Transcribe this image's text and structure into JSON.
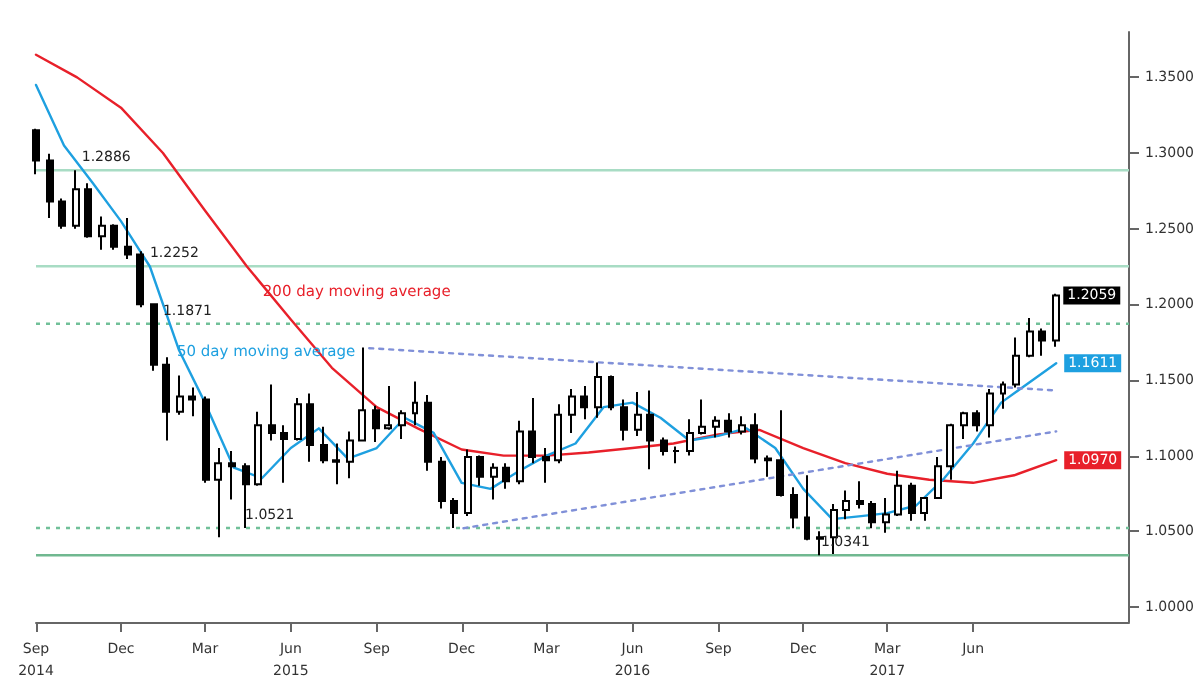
{
  "chart_data": {
    "type": "candlestick",
    "x": [
      "2014-09-01",
      "2014-09-15",
      "2014-09-29",
      "2014-10-13",
      "2014-10-27",
      "2014-11-10",
      "2014-11-24",
      "2014-12-08",
      "2014-12-22",
      "2015-01-05",
      "2015-01-19",
      "2015-02-02",
      "2015-02-16",
      "2015-03-02",
      "2015-03-16",
      "2015-03-30",
      "2015-04-13",
      "2015-04-27",
      "2015-05-11",
      "2015-05-25",
      "2015-06-08",
      "2015-06-22",
      "2015-07-06",
      "2015-07-20",
      "2015-08-03",
      "2015-08-17",
      "2015-08-31",
      "2015-09-14",
      "2015-09-28",
      "2015-10-12",
      "2015-10-26",
      "2015-11-09",
      "2015-11-23",
      "2015-12-07",
      "2015-12-21",
      "2016-01-04",
      "2016-01-18",
      "2016-02-01",
      "2016-02-15",
      "2016-02-29",
      "2016-03-14",
      "2016-03-28",
      "2016-04-11",
      "2016-04-25",
      "2016-05-09",
      "2016-05-23",
      "2016-06-06",
      "2016-06-20",
      "2016-07-04",
      "2016-07-18",
      "2016-08-01",
      "2016-08-15",
      "2016-08-29",
      "2016-09-12",
      "2016-09-26",
      "2016-10-10",
      "2016-10-24",
      "2016-11-07",
      "2016-11-21",
      "2016-12-05",
      "2016-12-19",
      "2017-01-02",
      "2017-01-16",
      "2017-01-30",
      "2017-02-13",
      "2017-02-27",
      "2017-03-13",
      "2017-03-27",
      "2017-04-10",
      "2017-04-24",
      "2017-05-08",
      "2017-05-22",
      "2017-06-05",
      "2017-06-19",
      "2017-07-03",
      "2017-07-17",
      "2017-07-31",
      "2017-08-14",
      "2017-08-28"
    ],
    "ohlc": [
      [
        1.315,
        1.316,
        1.286,
        1.295
      ],
      [
        1.295,
        1.2995,
        1.257,
        1.268
      ],
      [
        1.268,
        1.27,
        1.25,
        1.252
      ],
      [
        1.252,
        1.2886,
        1.25,
        1.276
      ],
      [
        1.276,
        1.28,
        1.244,
        1.245
      ],
      [
        1.245,
        1.258,
        1.236,
        1.252
      ],
      [
        1.252,
        1.253,
        1.236,
        1.238
      ],
      [
        1.238,
        1.257,
        1.23,
        1.233
      ],
      [
        1.233,
        1.235,
        1.198,
        1.2
      ],
      [
        1.2,
        1.2,
        1.156,
        1.16
      ],
      [
        1.16,
        1.165,
        1.11,
        1.129
      ],
      [
        1.129,
        1.153,
        1.127,
        1.139
      ],
      [
        1.139,
        1.145,
        1.126,
        1.137
      ],
      [
        1.137,
        1.139,
        1.082,
        1.084
      ],
      [
        1.084,
        1.105,
        1.046,
        1.095
      ],
      [
        1.095,
        1.103,
        1.071,
        1.093
      ],
      [
        1.093,
        1.095,
        1.0521,
        1.081
      ],
      [
        1.081,
        1.129,
        1.08,
        1.12
      ],
      [
        1.12,
        1.147,
        1.11,
        1.115
      ],
      [
        1.115,
        1.12,
        1.082,
        1.111
      ],
      [
        1.111,
        1.138,
        1.11,
        1.134
      ],
      [
        1.134,
        1.141,
        1.096,
        1.107
      ],
      [
        1.107,
        1.119,
        1.095,
        1.097
      ],
      [
        1.097,
        1.108,
        1.081,
        1.096
      ],
      [
        1.096,
        1.116,
        1.085,
        1.11
      ],
      [
        1.11,
        1.1714,
        1.11,
        1.13
      ],
      [
        1.13,
        1.133,
        1.109,
        1.118
      ],
      [
        1.118,
        1.146,
        1.117,
        1.12
      ],
      [
        1.12,
        1.13,
        1.111,
        1.128
      ],
      [
        1.128,
        1.149,
        1.12,
        1.135
      ],
      [
        1.135,
        1.14,
        1.09,
        1.096
      ],
      [
        1.096,
        1.099,
        1.065,
        1.07
      ],
      [
        1.07,
        1.072,
        1.0521,
        1.062
      ],
      [
        1.062,
        1.104,
        1.06,
        1.099
      ],
      [
        1.099,
        1.1,
        1.08,
        1.086
      ],
      [
        1.086,
        1.095,
        1.071,
        1.092
      ],
      [
        1.092,
        1.095,
        1.078,
        1.083
      ],
      [
        1.083,
        1.123,
        1.081,
        1.116
      ],
      [
        1.116,
        1.138,
        1.095,
        1.099
      ],
      [
        1.099,
        1.105,
        1.082,
        1.097
      ],
      [
        1.097,
        1.134,
        1.095,
        1.127
      ],
      [
        1.127,
        1.144,
        1.115,
        1.139
      ],
      [
        1.139,
        1.146,
        1.124,
        1.132
      ],
      [
        1.132,
        1.1616,
        1.125,
        1.152
      ],
      [
        1.152,
        1.153,
        1.13,
        1.132
      ],
      [
        1.132,
        1.137,
        1.11,
        1.117
      ],
      [
        1.117,
        1.142,
        1.113,
        1.127
      ],
      [
        1.127,
        1.143,
        1.091,
        1.11
      ],
      [
        1.11,
        1.112,
        1.1,
        1.103
      ],
      [
        1.103,
        1.106,
        1.095,
        1.103
      ],
      [
        1.103,
        1.124,
        1.1,
        1.115
      ],
      [
        1.115,
        1.137,
        1.114,
        1.119
      ],
      [
        1.119,
        1.126,
        1.112,
        1.123
      ],
      [
        1.123,
        1.128,
        1.112,
        1.116
      ],
      [
        1.116,
        1.126,
        1.114,
        1.12
      ],
      [
        1.12,
        1.128,
        1.095,
        1.098
      ],
      [
        1.098,
        1.1,
        1.086,
        1.097
      ],
      [
        1.097,
        1.13,
        1.073,
        1.074
      ],
      [
        1.074,
        1.079,
        1.052,
        1.059
      ],
      [
        1.059,
        1.087,
        1.044,
        1.045
      ],
      [
        1.045,
        1.05,
        1.0341,
        1.046
      ],
      [
        1.046,
        1.068,
        1.035,
        1.064
      ],
      [
        1.064,
        1.077,
        1.058,
        1.07
      ],
      [
        1.07,
        1.083,
        1.065,
        1.068
      ],
      [
        1.068,
        1.07,
        1.052,
        1.056
      ],
      [
        1.056,
        1.072,
        1.049,
        1.061
      ],
      [
        1.061,
        1.09,
        1.06,
        1.08
      ],
      [
        1.08,
        1.082,
        1.057,
        1.062
      ],
      [
        1.062,
        1.072,
        1.057,
        1.072
      ],
      [
        1.072,
        1.099,
        1.072,
        1.093
      ],
      [
        1.093,
        1.121,
        1.084,
        1.12
      ],
      [
        1.12,
        1.129,
        1.111,
        1.128
      ],
      [
        1.128,
        1.13,
        1.116,
        1.12
      ],
      [
        1.12,
        1.144,
        1.112,
        1.141
      ],
      [
        1.141,
        1.149,
        1.131,
        1.147
      ],
      [
        1.147,
        1.178,
        1.145,
        1.166
      ],
      [
        1.166,
        1.191,
        1.165,
        1.182
      ],
      [
        1.182,
        1.184,
        1.166,
        1.176
      ],
      [
        1.176,
        1.207,
        1.172,
        1.2059
      ]
    ],
    "color": "#000000",
    "value_labels": [
      null,
      null,
      null,
      null,
      null,
      null,
      null,
      null,
      null,
      null,
      null,
      null,
      null,
      null,
      null,
      null,
      null,
      null,
      null,
      null,
      null,
      null,
      null,
      null,
      null,
      null,
      null,
      null,
      null,
      null,
      null,
      null,
      null,
      null,
      null,
      null,
      null,
      null,
      null,
      null,
      null,
      null,
      null,
      null,
      null,
      null,
      null,
      null,
      null,
      null,
      null,
      null,
      null,
      null,
      null,
      null,
      null,
      null,
      null,
      null,
      null,
      null,
      null,
      null,
      null,
      null,
      null,
      null,
      null,
      null,
      null,
      null,
      null,
      null,
      null,
      null,
      null,
      null,
      "1.2059"
    ],
    "series": [
      {
        "name": "200 day moving average",
        "type": "line",
        "color": "#e8202a",
        "x": [
          "2014-09-01",
          "2014-10-15",
          "2014-12-01",
          "2015-01-15",
          "2015-03-01",
          "2015-04-15",
          "2015-06-01",
          "2015-07-15",
          "2015-09-01",
          "2015-10-15",
          "2015-12-01",
          "2016-01-15",
          "2016-03-01",
          "2016-04-15",
          "2016-06-01",
          "2016-07-15",
          "2016-09-01",
          "2016-10-15",
          "2016-12-01",
          "2017-01-15",
          "2017-03-01",
          "2017-04-15",
          "2017-06-01",
          "2017-07-15",
          "2017-08-29"
        ],
        "values": [
          1.365,
          1.35,
          1.33,
          1.3,
          1.262,
          1.225,
          1.19,
          1.158,
          1.132,
          1.118,
          1.104,
          1.1,
          1.1,
          1.102,
          1.105,
          1.108,
          1.114,
          1.117,
          1.105,
          1.095,
          1.088,
          1.084,
          1.082,
          1.087,
          1.097
        ],
        "value_labels": [
          null,
          null,
          null,
          null,
          null,
          null,
          null,
          null,
          null,
          null,
          null,
          null,
          null,
          null,
          null,
          null,
          null,
          null,
          null,
          null,
          null,
          null,
          null,
          null,
          "1.0970"
        ]
      },
      {
        "name": "50 day moving average",
        "type": "line",
        "color": "#1ea0e0",
        "x": [
          "2014-09-01",
          "2014-10-01",
          "2014-11-01",
          "2014-12-01",
          "2015-01-01",
          "2015-02-01",
          "2015-03-01",
          "2015-04-01",
          "2015-05-01",
          "2015-06-01",
          "2015-07-01",
          "2015-08-01",
          "2015-09-01",
          "2015-10-01",
          "2015-11-01",
          "2015-12-01",
          "2016-01-01",
          "2016-02-01",
          "2016-03-01",
          "2016-04-01",
          "2016-05-01",
          "2016-06-01",
          "2016-07-01",
          "2016-08-01",
          "2016-09-01",
          "2016-10-01",
          "2016-11-01",
          "2016-12-01",
          "2017-01-01",
          "2017-02-01",
          "2017-03-01",
          "2017-04-01",
          "2017-05-01",
          "2017-06-01",
          "2017-07-01",
          "2017-08-29"
        ],
        "values": [
          1.345,
          1.305,
          1.28,
          1.255,
          1.225,
          1.17,
          1.135,
          1.092,
          1.085,
          1.105,
          1.118,
          1.098,
          1.105,
          1.125,
          1.115,
          1.082,
          1.078,
          1.09,
          1.1,
          1.108,
          1.132,
          1.135,
          1.125,
          1.11,
          1.113,
          1.118,
          1.105,
          1.078,
          1.058,
          1.06,
          1.062,
          1.067,
          1.085,
          1.108,
          1.135,
          1.1611
        ],
        "value_labels": [
          null,
          null,
          null,
          null,
          null,
          null,
          null,
          null,
          null,
          null,
          null,
          null,
          null,
          null,
          null,
          null,
          null,
          null,
          null,
          null,
          null,
          null,
          null,
          null,
          null,
          null,
          null,
          null,
          null,
          null,
          null,
          null,
          null,
          null,
          null,
          "1.1611"
        ]
      },
      {
        "type": "line",
        "color": "#8090d8",
        "line_style": "dotted",
        "x": [
          "2015-08-24",
          "2017-08-29"
        ],
        "values": [
          1.171,
          1.143
        ]
      },
      {
        "type": "line",
        "color": "#8090d8",
        "line_style": "dotted",
        "x": [
          "2015-12-03",
          "2017-08-29"
        ],
        "values": [
          1.052,
          1.116
        ]
      }
    ],
    "ylim": [
      0.99,
      1.38
    ],
    "yticks": [
      {
        "value": 1.0,
        "label": "1.0000"
      },
      {
        "value": 1.05,
        "label": "1.0500"
      },
      {
        "value": 1.1,
        "label": "1.1000"
      },
      {
        "value": 1.15,
        "label": "1.1500"
      },
      {
        "value": 1.2,
        "label": "1.2000"
      },
      {
        "value": 1.25,
        "label": "1.2500"
      },
      {
        "value": 1.3,
        "label": "1.3000"
      },
      {
        "value": 1.35,
        "label": "1.3500"
      }
    ],
    "xlim": [
      "2014-09-01",
      "2017-11-15"
    ],
    "xticks": [
      {
        "value": "2014-09-01",
        "label": "Sep\n2014"
      },
      {
        "value": "2014-12-01",
        "label": "Dec"
      },
      {
        "value": "2015-03-01",
        "label": "Mar"
      },
      {
        "value": "2015-06-01",
        "label": "Jun\n2015"
      },
      {
        "value": "2015-09-01",
        "label": "Sep"
      },
      {
        "value": "2015-12-01",
        "label": "Dec"
      },
      {
        "value": "2016-03-01",
        "label": "Mar"
      },
      {
        "value": "2016-06-01",
        "label": "Jun\n2016"
      },
      {
        "value": "2016-09-01",
        "label": "Sep"
      },
      {
        "value": "2016-12-01",
        "label": "Dec"
      },
      {
        "value": "2017-03-01",
        "label": "Mar\n2017"
      },
      {
        "value": "2017-06-01",
        "label": "Jun"
      }
    ],
    "ref_lines": [
      {
        "axis": "y",
        "value": 1.2886,
        "color": "#a8dcc4",
        "line_style": "solid"
      },
      {
        "axis": "y",
        "value": 1.2252,
        "color": "#a8dcc4",
        "line_style": "solid"
      },
      {
        "axis": "y",
        "value": 1.1871,
        "color": "#70c098",
        "line_style": "dotted"
      },
      {
        "axis": "y",
        "value": 1.0521,
        "color": "#70c098",
        "line_style": "dotted"
      },
      {
        "axis": "y",
        "value": 1.0341,
        "color": "#70b890",
        "line_style": "solid"
      }
    ],
    "annotations": [
      {
        "text": "1.2886",
        "x": "2014-10-20",
        "y": 1.2886
      },
      {
        "text": "1.2252",
        "x": "2015-01-01",
        "y": 1.2252
      },
      {
        "text": "1.1871",
        "x": "2015-01-15",
        "y": 1.1871
      },
      {
        "text": "1.0521",
        "x": "2015-04-13",
        "y": 1.0521
      },
      {
        "text": "1.0341",
        "x": "2016-12-20",
        "y": 1.0341
      }
    ],
    "grid": false,
    "legend": false
  }
}
